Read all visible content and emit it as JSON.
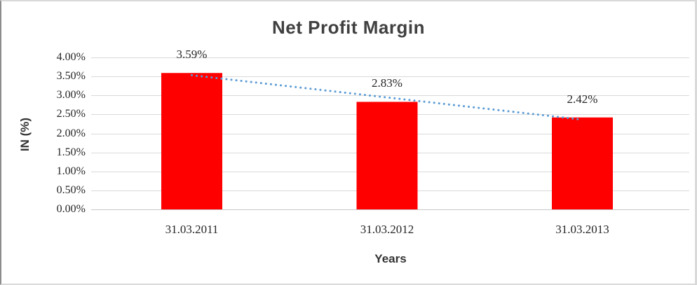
{
  "chart_data": {
    "type": "bar",
    "title": "Net Profit Margin",
    "xlabel": "Years",
    "ylabel": "IN (%)",
    "categories": [
      "31.03.2011",
      "31.03.2012",
      "31.03.2013"
    ],
    "values": [
      3.59,
      2.83,
      2.42
    ],
    "data_labels": [
      "3.59%",
      "2.83%",
      "2.42%"
    ],
    "ylim": [
      0,
      4
    ],
    "ytick_step": 0.5,
    "ytick_labels": [
      "0.00%",
      "0.50%",
      "1.00%",
      "1.50%",
      "2.00%",
      "2.50%",
      "3.00%",
      "3.50%",
      "4.00%"
    ],
    "grid": true,
    "legend": "none",
    "bar_color": "#ff0000",
    "gridline_color": "#d9d9d9",
    "baseline_color": "#c6c6c6",
    "trendline": {
      "type": "linear",
      "style": "dotted",
      "color": "#5b9bd5"
    },
    "title_color": "#404040",
    "tick_color": "#262626"
  }
}
